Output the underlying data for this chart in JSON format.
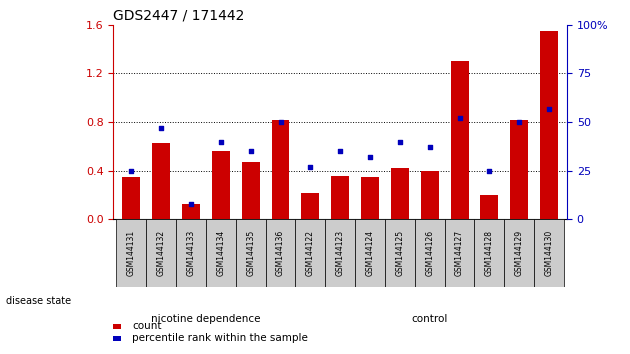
{
  "title": "GDS2447 / 171442",
  "samples": [
    "GSM144131",
    "GSM144132",
    "GSM144133",
    "GSM144134",
    "GSM144135",
    "GSM144136",
    "GSM144122",
    "GSM144123",
    "GSM144124",
    "GSM144125",
    "GSM144126",
    "GSM144127",
    "GSM144128",
    "GSM144129",
    "GSM144130"
  ],
  "count_values": [
    0.35,
    0.63,
    0.13,
    0.56,
    0.47,
    0.82,
    0.22,
    0.36,
    0.35,
    0.42,
    0.4,
    1.3,
    0.2,
    0.82,
    1.55
  ],
  "percentile_values": [
    25,
    47,
    8,
    40,
    35,
    50,
    27,
    35,
    32,
    40,
    37,
    52,
    25,
    50,
    57
  ],
  "ylim_left": [
    0,
    1.6
  ],
  "ylim_right": [
    0,
    100
  ],
  "yticks_left": [
    0,
    0.4,
    0.8,
    1.2,
    1.6
  ],
  "yticks_right": [
    0,
    25,
    50,
    75,
    100
  ],
  "bar_color": "#CC0000",
  "dot_color": "#0000BB",
  "group1_label": "nicotine dependence",
  "group2_label": "control",
  "group1_color": "#AADDAA",
  "group2_color": "#55CC55",
  "group1_count": 6,
  "group2_count": 9,
  "tick_bg_color": "#CCCCCC",
  "legend_count_label": "count",
  "legend_percentile_label": "percentile rank within the sample",
  "disease_state_label": "disease state",
  "right_axis_color": "#0000BB",
  "left_axis_color": "#CC0000",
  "fig_width": 6.3,
  "fig_height": 3.54,
  "fig_dpi": 100
}
